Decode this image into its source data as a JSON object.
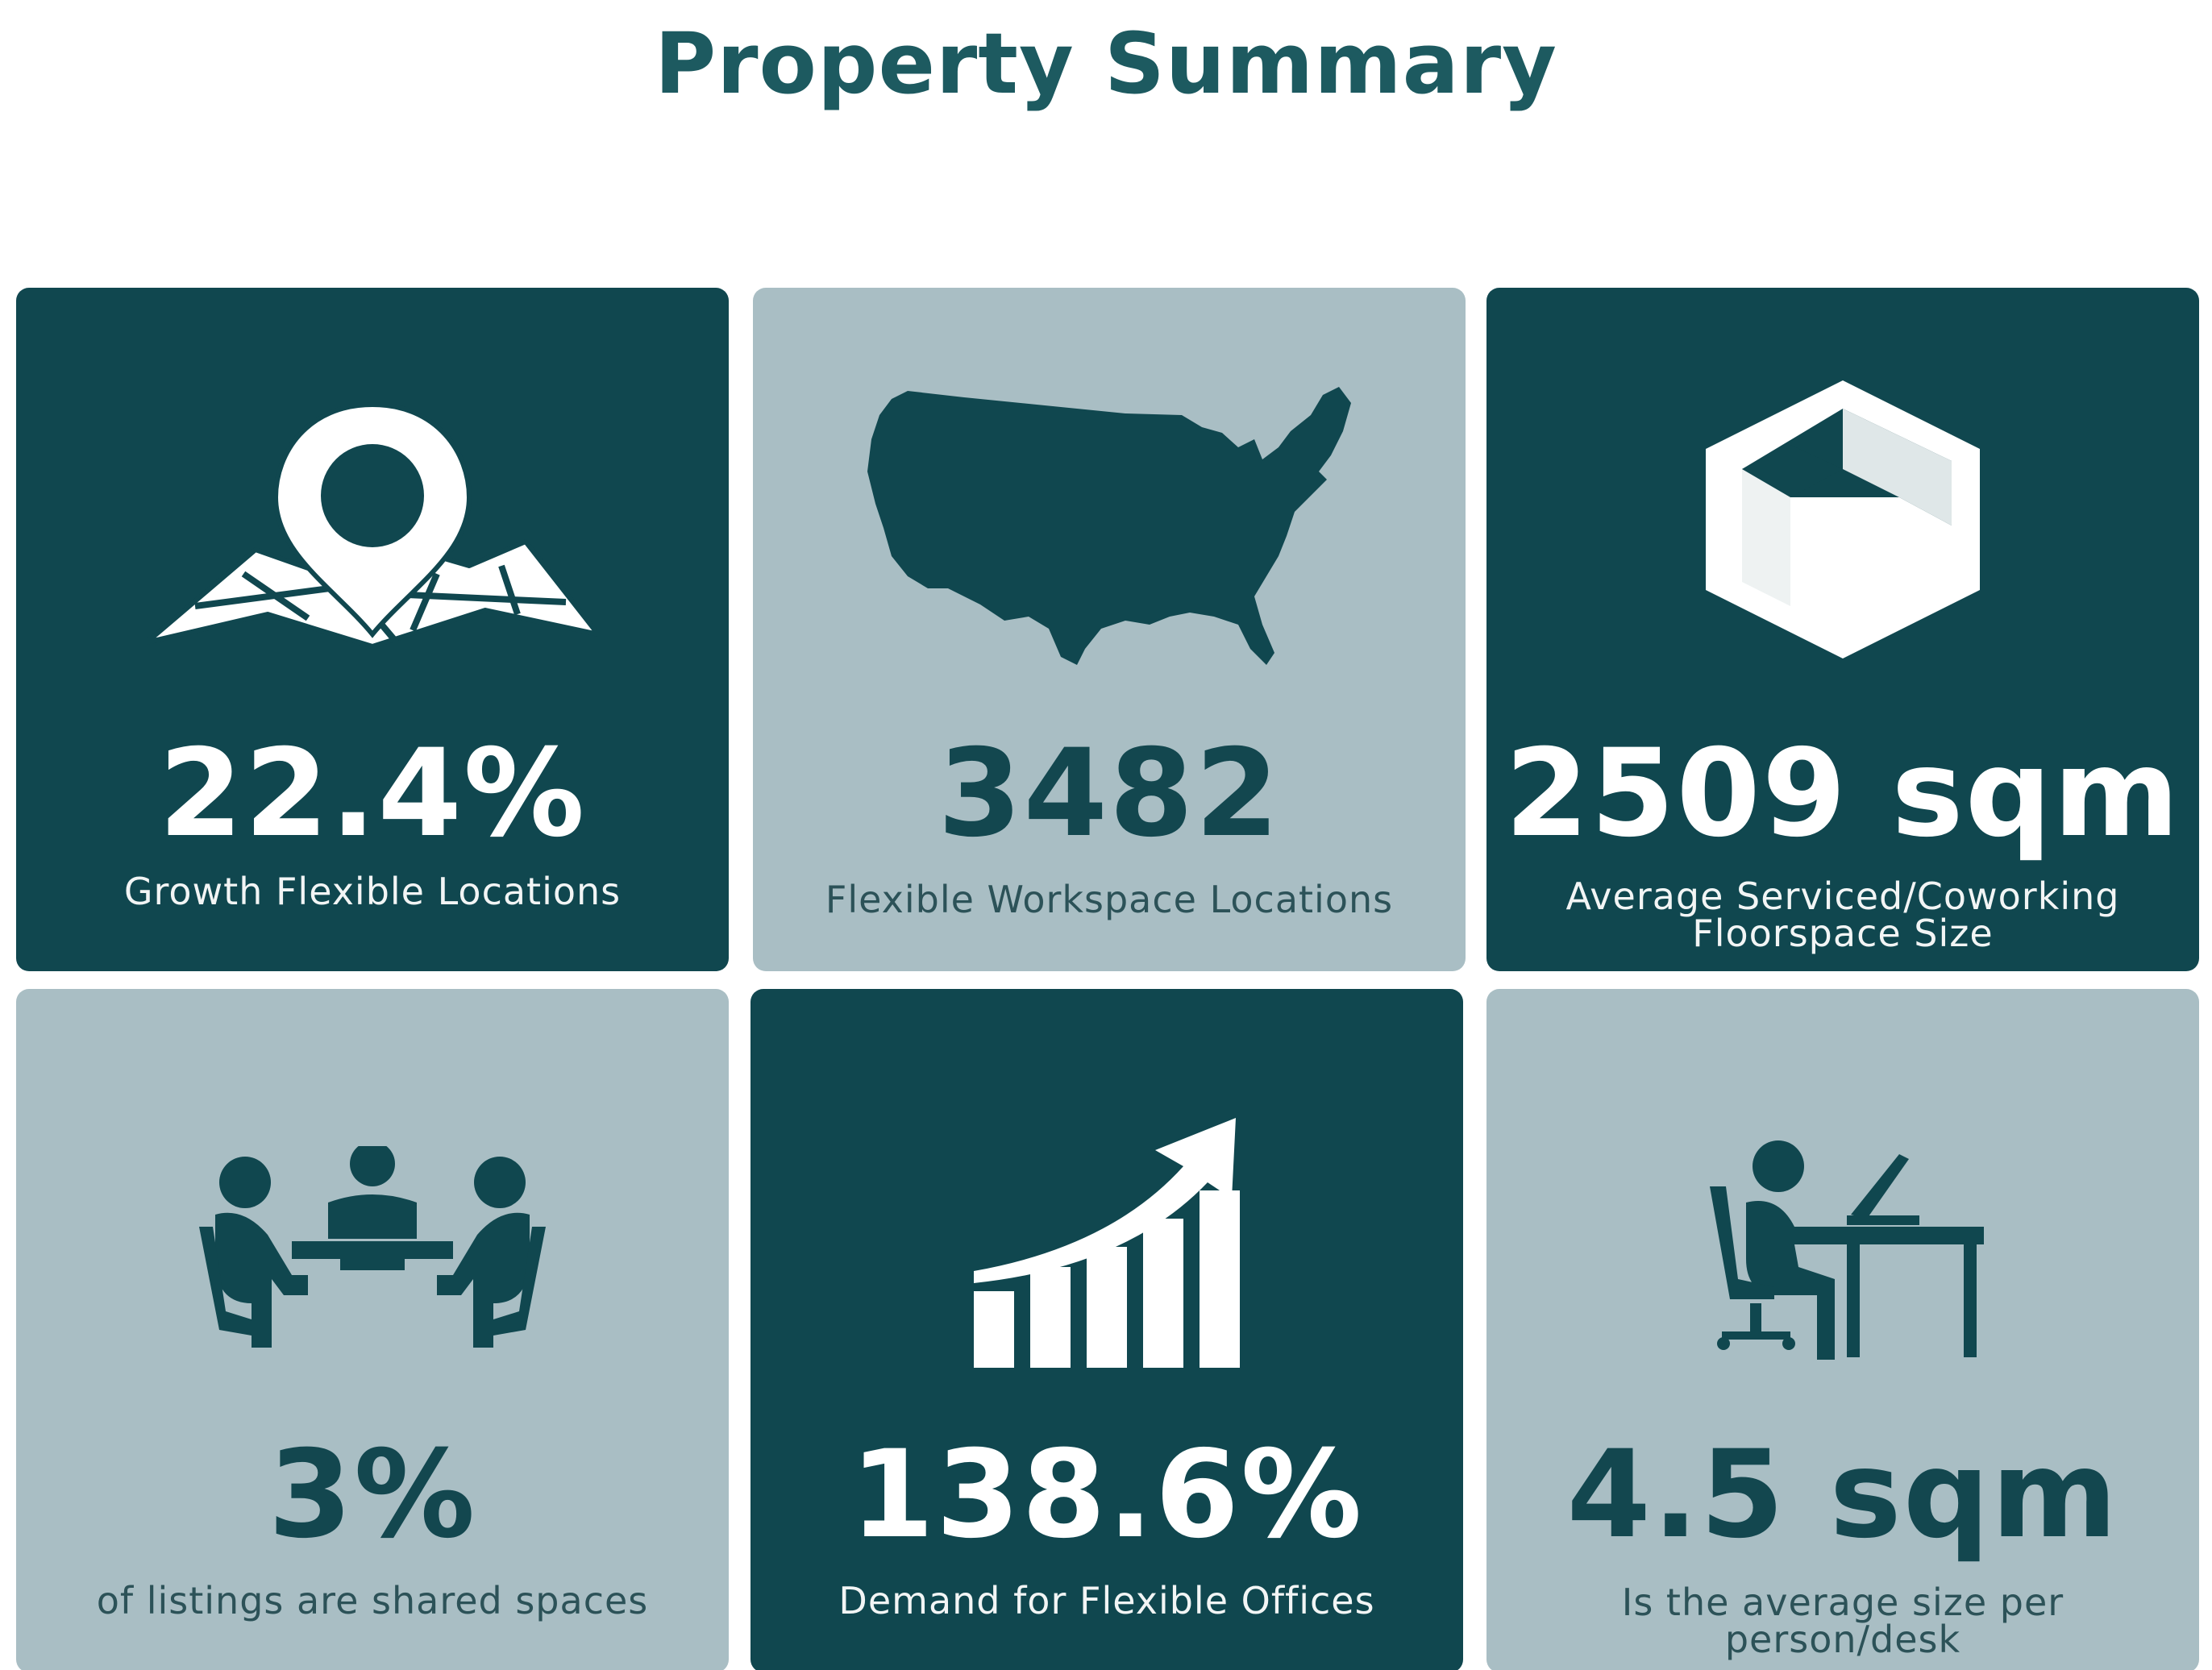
{
  "page": {
    "title": "Property Summary"
  },
  "theme": {
    "dark_tile": "#10474f",
    "light_tile": "#a9bec4",
    "title_color": "#1d5a60"
  },
  "cards": [
    {
      "value": "22.4%",
      "label": "Growth Flexible Locations",
      "icon": "map-pin-icon",
      "style": "dark"
    },
    {
      "value": "3482",
      "label": "Flexible Workspace Locations",
      "icon": "usa-map-icon",
      "style": "light"
    },
    {
      "value": "2509 sqm",
      "label_line1": "Average Serviced/Coworking",
      "label_line2": "Floorspace Size",
      "icon": "floorspace-cube-icon",
      "style": "dark"
    },
    {
      "value": "3%",
      "label": "of listings are shared spaces",
      "icon": "meeting-table-icon",
      "style": "light"
    },
    {
      "value": "138.6%",
      "label": "Demand for Flexible Offices",
      "icon": "growth-chart-icon",
      "style": "dark"
    },
    {
      "value": "4.5 sqm",
      "label_line1": "Is the average size per",
      "label_line2": "person/desk",
      "icon": "desk-worker-icon",
      "style": "light"
    }
  ]
}
